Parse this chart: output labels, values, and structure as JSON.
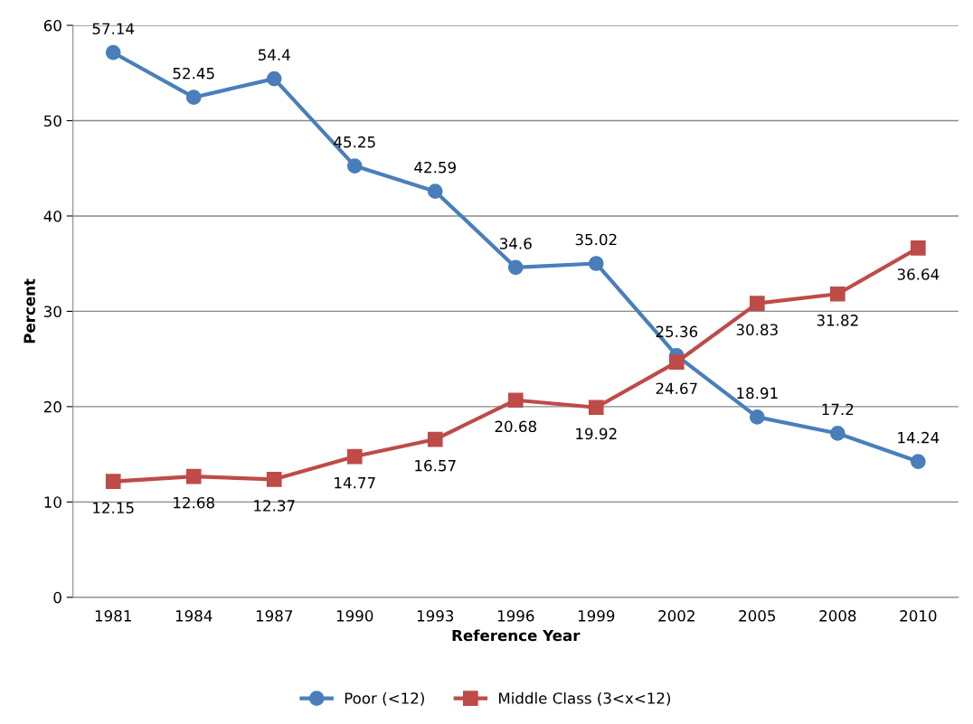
{
  "chart_data": {
    "type": "line",
    "xlabel": "Reference Year",
    "ylabel": "Percent",
    "categories": [
      "1981",
      "1984",
      "1987",
      "1990",
      "1993",
      "1996",
      "1999",
      "2002",
      "2005",
      "2008",
      "2010"
    ],
    "series": [
      {
        "name": "Poor (<12)",
        "color": "#4a7ebb",
        "marker": "circle",
        "values": [
          57.14,
          52.45,
          54.4,
          45.25,
          42.59,
          34.6,
          35.02,
          25.36,
          18.91,
          17.2,
          14.24
        ]
      },
      {
        "name": "Middle Class (3<x<12)",
        "color": "#be4b48",
        "marker": "square",
        "values": [
          12.15,
          12.68,
          12.37,
          14.77,
          16.57,
          20.68,
          19.92,
          24.67,
          30.83,
          31.82,
          36.64
        ]
      }
    ],
    "ylim": [
      0,
      60
    ],
    "yticks": [
      0,
      10,
      20,
      30,
      40,
      50,
      60
    ],
    "grid": "y",
    "legend": "bottom",
    "data_labels": true,
    "line_style": "solid"
  }
}
